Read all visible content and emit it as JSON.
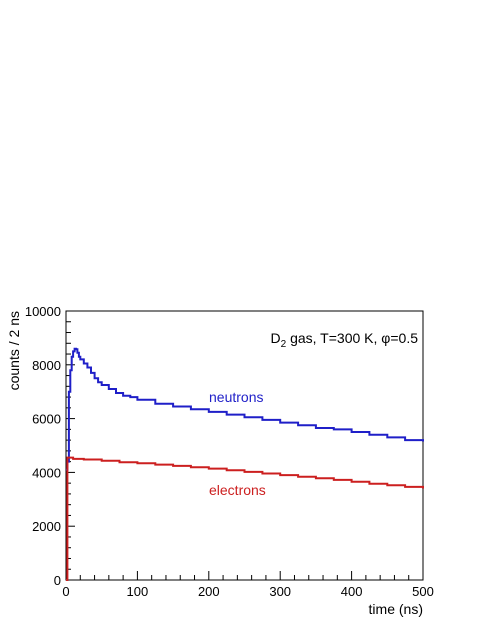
{
  "chart_data": {
    "type": "line",
    "title": "",
    "annotation": {
      "prefix": "D",
      "subscript": "2",
      "suffix": " gas, T=300 K, ",
      "phi_symbol": "φ",
      "phi_value": "=0.5"
    },
    "xlabel": "time (ns)",
    "ylabel": "counts / 2 ns",
    "xlim": [
      0,
      500
    ],
    "ylim": [
      0,
      10000
    ],
    "x_ticks": [
      0,
      100,
      200,
      300,
      400,
      500
    ],
    "y_ticks": [
      0,
      2000,
      4000,
      6000,
      8000,
      10000
    ],
    "grid": false,
    "legend": "none",
    "series": [
      {
        "name": "neutrons",
        "color": "#1f1fc8",
        "x": [
          0,
          2,
          4,
          6,
          8,
          10,
          12,
          14,
          16,
          18,
          20,
          25,
          30,
          35,
          40,
          45,
          50,
          60,
          70,
          80,
          90,
          100,
          125,
          150,
          175,
          200,
          225,
          250,
          275,
          300,
          325,
          350,
          375,
          400,
          425,
          450,
          475,
          500
        ],
        "y": [
          4100,
          4400,
          7000,
          7800,
          8300,
          8500,
          8600,
          8580,
          8450,
          8300,
          8200,
          8050,
          7900,
          7700,
          7500,
          7350,
          7250,
          7100,
          6950,
          6850,
          6800,
          6700,
          6550,
          6450,
          6350,
          6250,
          6150,
          6050,
          5950,
          5850,
          5750,
          5650,
          5600,
          5500,
          5400,
          5300,
          5200,
          5150
        ]
      },
      {
        "name": "electrons",
        "color": "#cc1f1f",
        "x": [
          0,
          2,
          4,
          10,
          25,
          50,
          75,
          100,
          125,
          150,
          175,
          200,
          225,
          250,
          275,
          300,
          325,
          350,
          375,
          400,
          425,
          450,
          475,
          500
        ],
        "y": [
          0,
          4550,
          4550,
          4500,
          4480,
          4430,
          4380,
          4340,
          4290,
          4240,
          4190,
          4140,
          4080,
          4020,
          3960,
          3900,
          3840,
          3780,
          3720,
          3650,
          3580,
          3520,
          3460,
          3400
        ]
      }
    ]
  }
}
